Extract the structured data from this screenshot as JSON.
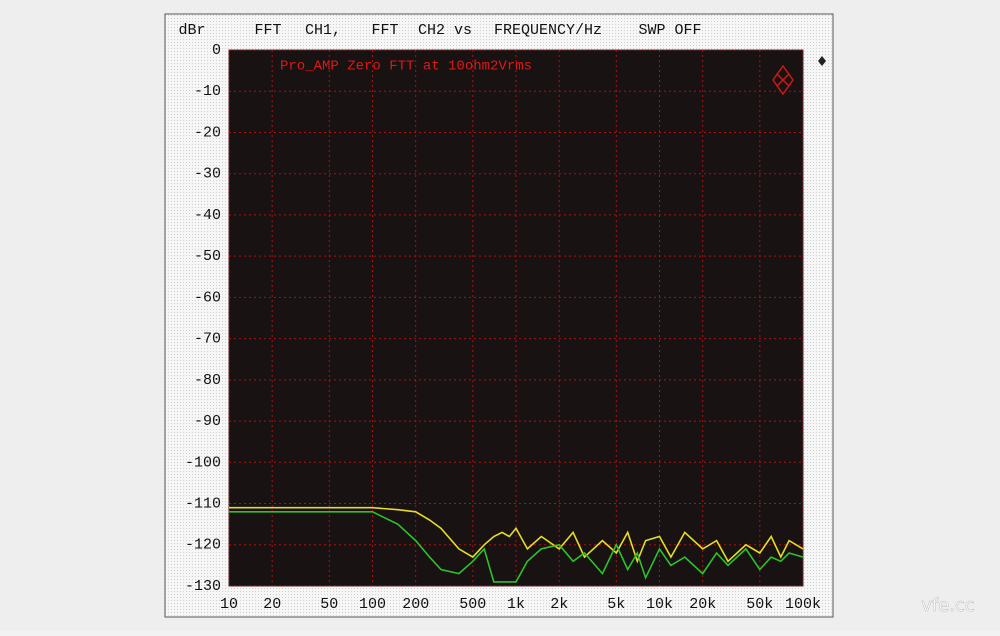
{
  "chart_data": {
    "type": "line",
    "header": [
      "FFT",
      "CH1,",
      "FFT",
      "CH2 vs",
      "FREQUENCY/Hz",
      "SWP OFF"
    ],
    "y_label": "dBr",
    "annotation": "Pro_AMP Zero FTT at 10ohm2Vrms",
    "watermark": "vfe.cc",
    "log_x": true,
    "grid": true,
    "x": [
      10,
      20,
      50,
      100,
      150,
      200,
      250,
      300,
      400,
      500,
      600,
      700,
      800,
      900,
      1000,
      1200,
      1500,
      2000,
      2500,
      3000,
      4000,
      5000,
      6000,
      7000,
      8000,
      10000,
      12000,
      15000,
      20000,
      25000,
      30000,
      40000,
      50000,
      60000,
      70000,
      80000,
      100000
    ],
    "series": [
      {
        "color": "#e6dc28",
        "values": [
          -111,
          -111,
          -111,
          -111,
          -111.5,
          -112,
          -114,
          -116,
          -121,
          -123,
          -120,
          -118,
          -117,
          -118,
          -116,
          -121,
          -118,
          -121,
          -117,
          -123,
          -119,
          -122,
          -117,
          -124,
          -119,
          -118,
          -123,
          -117,
          -121,
          -119,
          -124,
          -120,
          -122,
          -118,
          -123,
          -119,
          -121
        ]
      },
      {
        "color": "#2cc22c",
        "values": [
          -112,
          -112,
          -112,
          -112,
          -115,
          -119,
          -123,
          -126,
          -127,
          -124,
          -121,
          -129,
          -129,
          -129,
          -129,
          -124,
          -121,
          -120,
          -124,
          -122,
          -127,
          -120,
          -126,
          -122,
          -128,
          -121,
          -125,
          -123,
          -127,
          -122,
          -125,
          -121,
          -126,
          -123,
          -124,
          -122,
          -123
        ]
      }
    ],
    "xlim": [
      10,
      100000
    ],
    "xticks": [
      10,
      20,
      50,
      100,
      200,
      500,
      {
        "value": 1000,
        "label": "1k"
      },
      {
        "value": 2000,
        "label": "2k"
      },
      {
        "value": 5000,
        "label": "5k"
      },
      {
        "value": 10000,
        "label": "10k"
      },
      {
        "value": 20000,
        "label": "20k"
      },
      {
        "value": 50000,
        "label": "50k"
      },
      {
        "value": 100000,
        "label": "100k"
      }
    ],
    "ylim": [
      -130,
      0
    ],
    "yticks": [
      0,
      -10,
      -20,
      -30,
      -40,
      -50,
      -60,
      -70,
      -80,
      -90,
      -100,
      -110,
      -120,
      -130
    ]
  }
}
